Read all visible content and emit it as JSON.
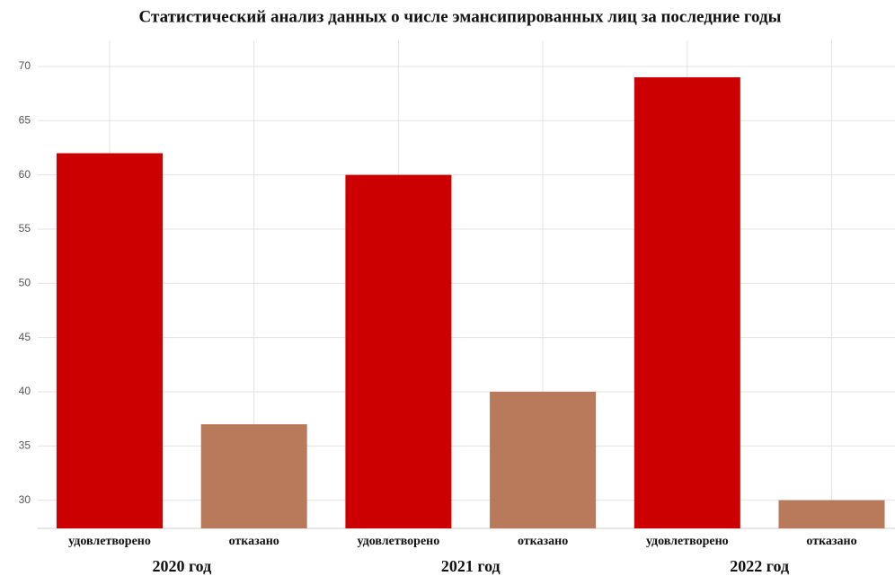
{
  "chart_data": {
    "type": "bar",
    "title": "Статистический анализ данных о числе эмансипированных лиц за последние годы",
    "categories": [
      "удовлетворено",
      "отказано",
      "удовлетворено",
      "отказано",
      "удовлетворено",
      "отказано"
    ],
    "values": [
      62,
      37,
      60,
      40,
      69,
      30
    ],
    "colors": [
      "#cc0000",
      "#b87a5a",
      "#cc0000",
      "#b87a5a",
      "#cc0000",
      "#b87a5a"
    ],
    "groups": [
      "2020 год",
      "2021 год",
      "2022 год"
    ],
    "ylim": [
      27.4,
      72.4
    ],
    "yticks": [
      30,
      35,
      40,
      45,
      50,
      55,
      60,
      65,
      70
    ],
    "grid": true
  }
}
